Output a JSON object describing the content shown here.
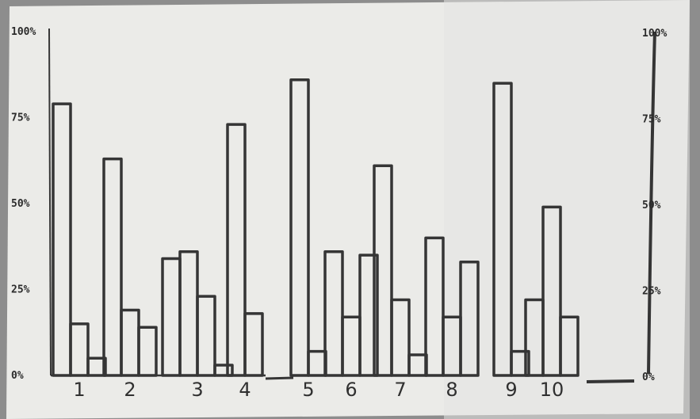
{
  "chart_data": {
    "type": "bar",
    "title": "",
    "xlabel": "",
    "ylabel": "",
    "ylim": [
      0,
      100
    ],
    "left_ticks": [
      "0%",
      "25%",
      "50%",
      "75%",
      "100%"
    ],
    "right_ticks": [
      "0%",
      "25%",
      "50%",
      "75%",
      "100%"
    ],
    "categories": [
      "1",
      "2",
      "3",
      "4",
      "5",
      "6",
      "7",
      "8",
      "9",
      "10"
    ],
    "groups": [
      [
        79,
        15,
        5
      ],
      [
        63,
        19,
        14
      ],
      [
        34,
        36,
        23,
        3
      ],
      [
        73,
        18
      ],
      [
        86,
        7
      ],
      [
        36,
        17,
        35
      ],
      [
        61,
        22,
        6
      ],
      [
        40,
        17,
        33
      ],
      [
        85,
        7
      ],
      [
        22,
        49,
        17
      ]
    ],
    "grid": false,
    "legend": "none",
    "colors": {
      "ink": "#353535",
      "paper": "#ededea"
    }
  }
}
